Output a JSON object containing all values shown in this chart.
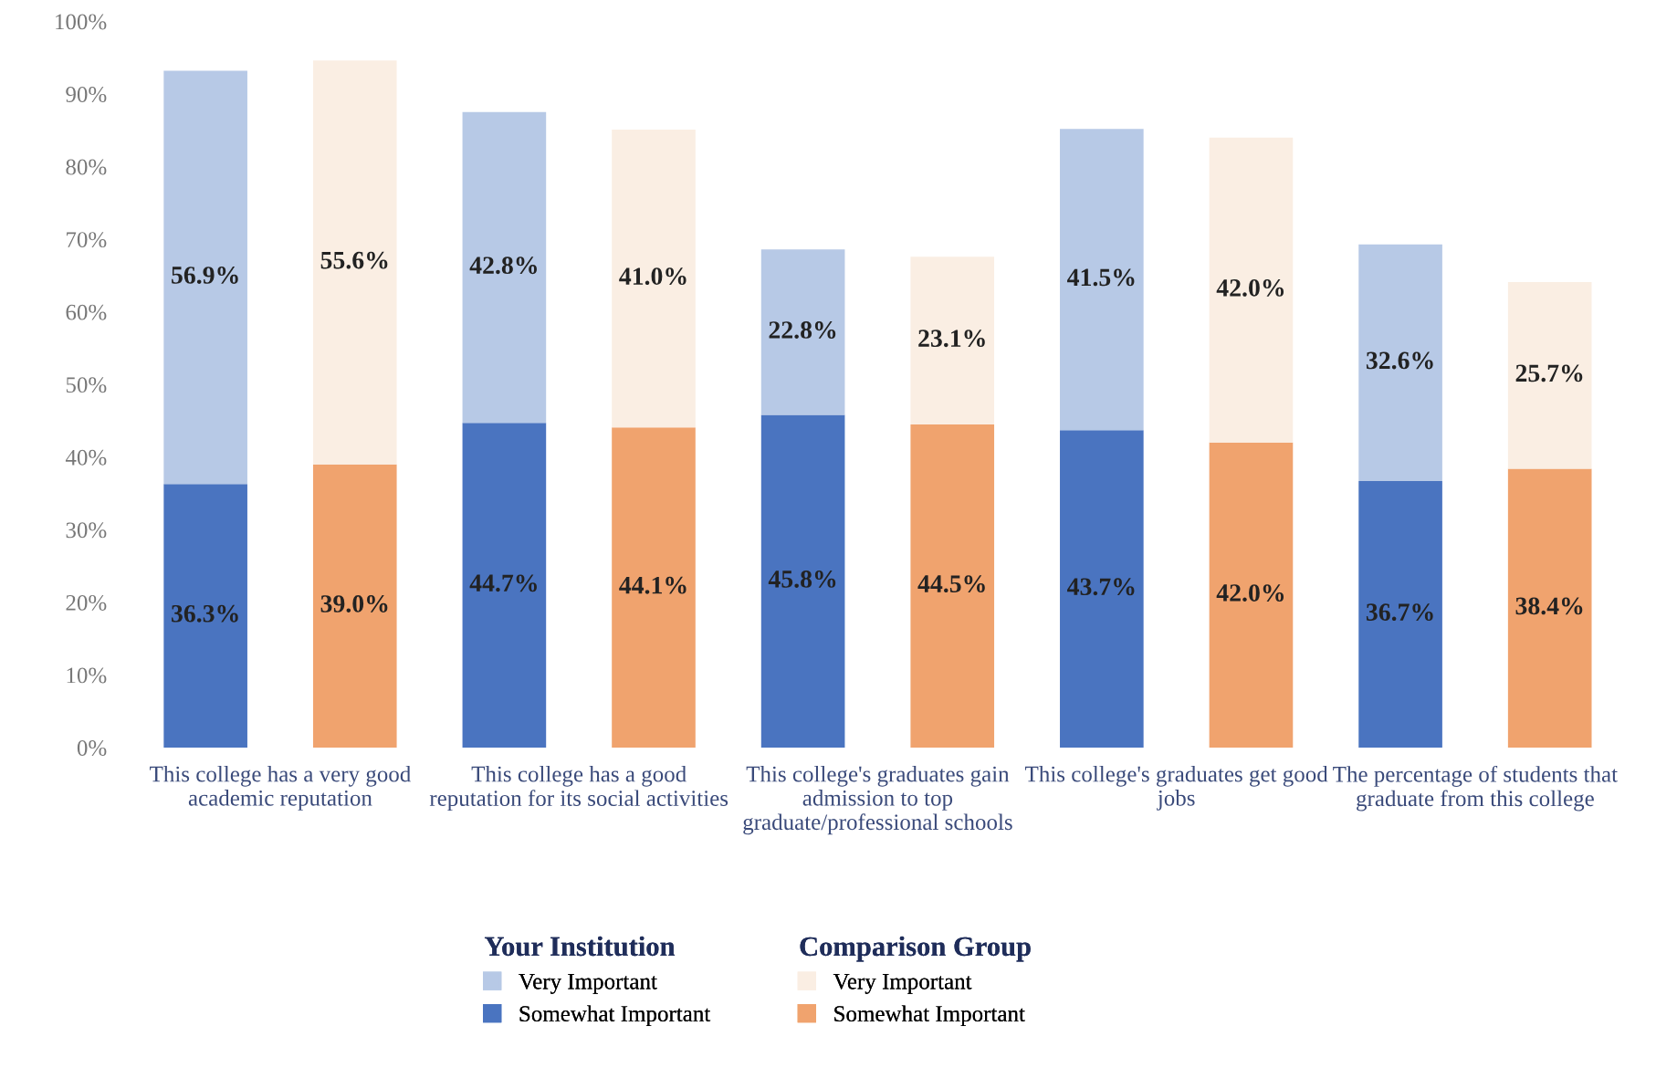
{
  "chart_data": {
    "type": "bar",
    "stacked": true,
    "categories": [
      "This college has a very good academic reputation",
      null,
      "This college has a good reputation for its social activities",
      null,
      "This college's graduates gain admission to top graduate/professional schools",
      null,
      "This college's graduates get good jobs",
      null,
      "The percentage of students that graduate from this college",
      null
    ],
    "series": [
      {
        "name": "Somewhat Important",
        "color": "#4a74c0",
        "values": [
          36.3,
          null,
          44.7,
          null,
          45.8,
          null,
          43.7,
          null,
          36.7,
          null
        ],
        "value_labels": [
          "36.3%",
          null,
          "44.7%",
          null,
          "45.8%",
          null,
          "43.7%",
          null,
          "36.7%",
          null
        ]
      },
      {
        "name": "Very Important",
        "color": "#b7c9e6",
        "values": [
          56.9,
          null,
          42.8,
          null,
          22.8,
          null,
          41.5,
          null,
          32.6,
          null
        ],
        "value_labels": [
          "56.9%",
          null,
          "42.8%",
          null,
          "22.8%",
          null,
          "41.5%",
          null,
          "32.6%",
          null
        ]
      },
      {
        "name": "Somewhat Important",
        "color": "#f0a36e",
        "values": [
          null,
          39.0,
          null,
          44.1,
          null,
          44.5,
          null,
          42.0,
          null,
          38.4
        ],
        "value_labels": [
          null,
          "39.0%",
          null,
          "44.1%",
          null,
          "44.5%",
          null,
          "42.0%",
          null,
          "38.4%"
        ]
      },
      {
        "name": "Very Important",
        "color": "#faeee3",
        "values": [
          null,
          55.6,
          null,
          41.0,
          null,
          23.1,
          null,
          42.0,
          null,
          25.7
        ],
        "value_labels": [
          null,
          "55.6%",
          null,
          "41.0%",
          null,
          "23.1%",
          null,
          "42.0%",
          null,
          "25.7%"
        ]
      }
    ],
    "annotations": [
      "Your Institution",
      "Comparison Group"
    ],
    "ylim": [
      0,
      100
    ],
    "yticks": [
      {
        "value": 0,
        "label": "0%"
      },
      {
        "value": 10,
        "label": "10%"
      },
      {
        "value": 20,
        "label": "20%"
      },
      {
        "value": 30,
        "label": "30%"
      },
      {
        "value": 40,
        "label": "40%"
      },
      {
        "value": 50,
        "label": "50%"
      },
      {
        "value": 60,
        "label": "60%"
      },
      {
        "value": 70,
        "label": "70%"
      },
      {
        "value": 80,
        "label": "80%"
      },
      {
        "value": 90,
        "label": "90%"
      },
      {
        "value": 100,
        "label": "100%"
      }
    ],
    "legend": "bottom",
    "grid": false
  }
}
